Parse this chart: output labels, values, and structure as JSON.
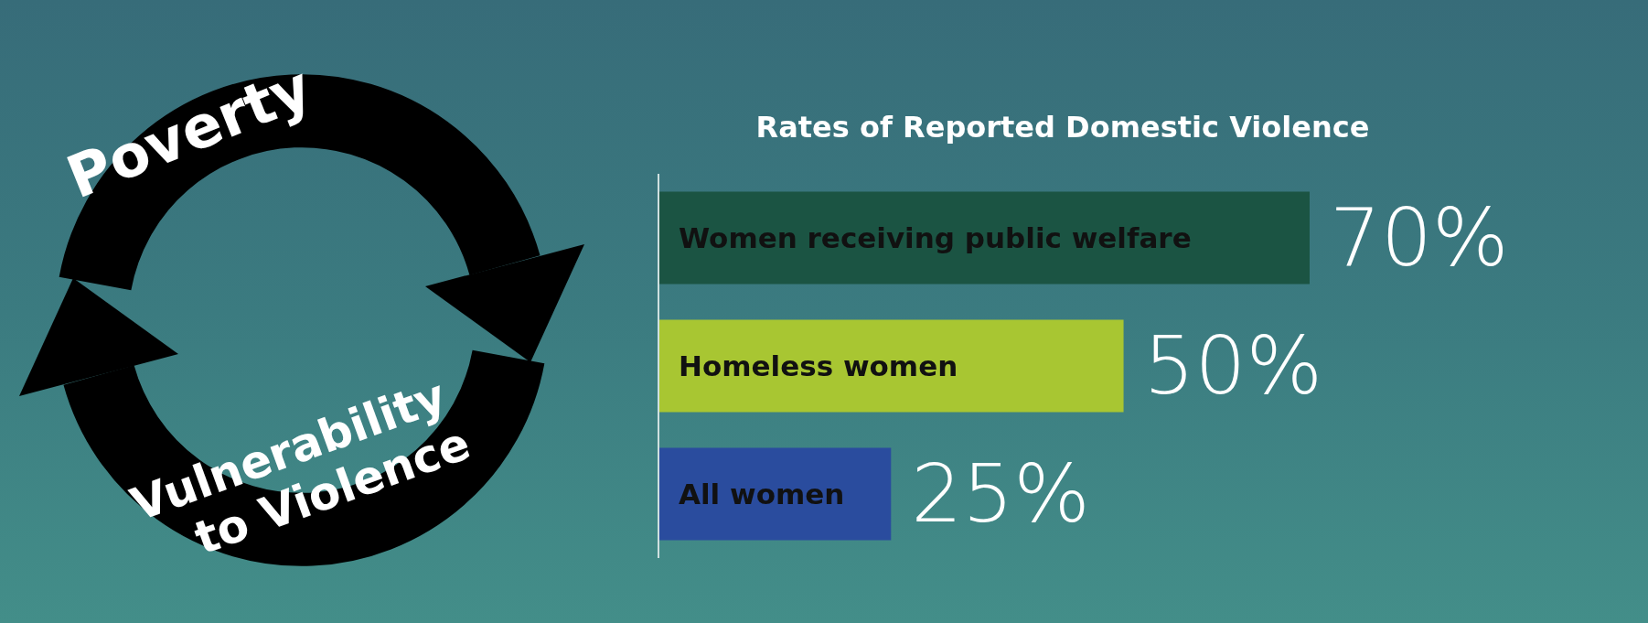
{
  "chart_data": {
    "type": "bar",
    "orientation": "horizontal",
    "title": "Rates of Reported Domestic Violence",
    "categories": [
      "Women receiving public welfare",
      "Homeless women",
      "All women"
    ],
    "values": [
      70,
      50,
      25
    ],
    "colors": [
      "#1b5443",
      "#a8c632",
      "#2a4c9e"
    ],
    "value_labels": [
      "70%",
      "50%",
      "25%"
    ],
    "annotations": [
      "Poverty",
      "Vulnerability to Violence"
    ]
  }
}
